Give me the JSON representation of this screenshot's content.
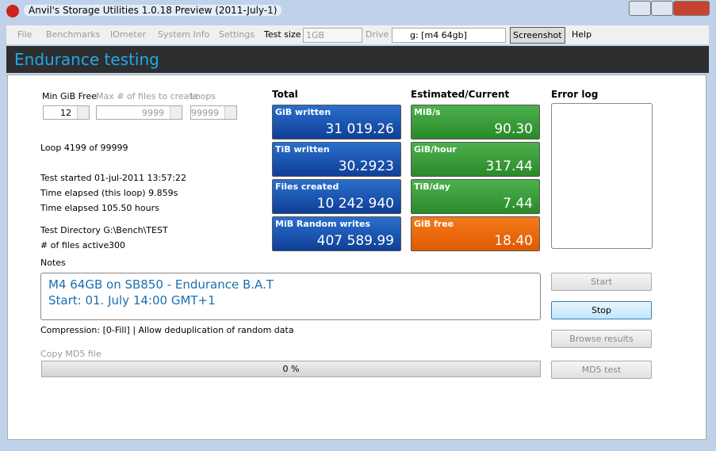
{
  "window": {
    "title": "Anvil's Storage Utilities 1.0.18 Preview (2011-July-1)"
  },
  "menu": {
    "items": [
      "File",
      "Benchmarks",
      "IOmeter",
      "System Info",
      "Settings"
    ],
    "test_size_label": "Test size",
    "test_size_value": "1GB",
    "drive_label": "Drive",
    "drive_value": "g: [m4 64gb]",
    "screenshot": "Screenshot",
    "help": "Help"
  },
  "header": {
    "title": "Endurance testing"
  },
  "inputs": [
    {
      "label": "Min GiB Free",
      "value": "12"
    },
    {
      "label": "Max # of files to create",
      "value": "9999"
    },
    {
      "label": "Loops",
      "value": "99999"
    }
  ],
  "status": {
    "loop": "Loop 4199 of 99999",
    "started": "Test started 01-jul-2011 13:57:22",
    "elapsed_loop": "Time elapsed (this loop) 9.859s",
    "elapsed": "Time elapsed 105.50 hours",
    "directory": "Test Directory G:\\Bench\\TEST",
    "files_active_label": "# of files active",
    "files_active_value": "300"
  },
  "total": {
    "heading": "Total",
    "tiles": [
      {
        "label": "GiB written",
        "value": "31 019.26"
      },
      {
        "label": "TiB written",
        "value": "30.2923"
      },
      {
        "label": "Files created",
        "value": "10 242 940"
      },
      {
        "label": "MiB Random writes",
        "value": "407 589.99"
      }
    ]
  },
  "estimated": {
    "heading": "Estimated/Current",
    "tiles": [
      {
        "label": "MiB/s",
        "value": "90.30"
      },
      {
        "label": "GiB/hour",
        "value": "317.44"
      },
      {
        "label": "TiB/day",
        "value": "7.44"
      },
      {
        "label": "GiB free",
        "value": "18.40"
      }
    ]
  },
  "error_log": {
    "heading": "Error log"
  },
  "notes": {
    "label": "Notes",
    "lines": [
      "M4 64GB on SB850 - Endurance B.A.T",
      "Start: 01. July 14:00 GMT+1"
    ]
  },
  "compression": "Compression: [0-Fill] | Allow deduplication of random data",
  "md5": {
    "label": "Copy MD5 file",
    "progress": "0 %"
  },
  "buttons": {
    "start": "Start",
    "stop": "Stop",
    "browse": "Browse results",
    "md5_test": "MD5 test"
  }
}
